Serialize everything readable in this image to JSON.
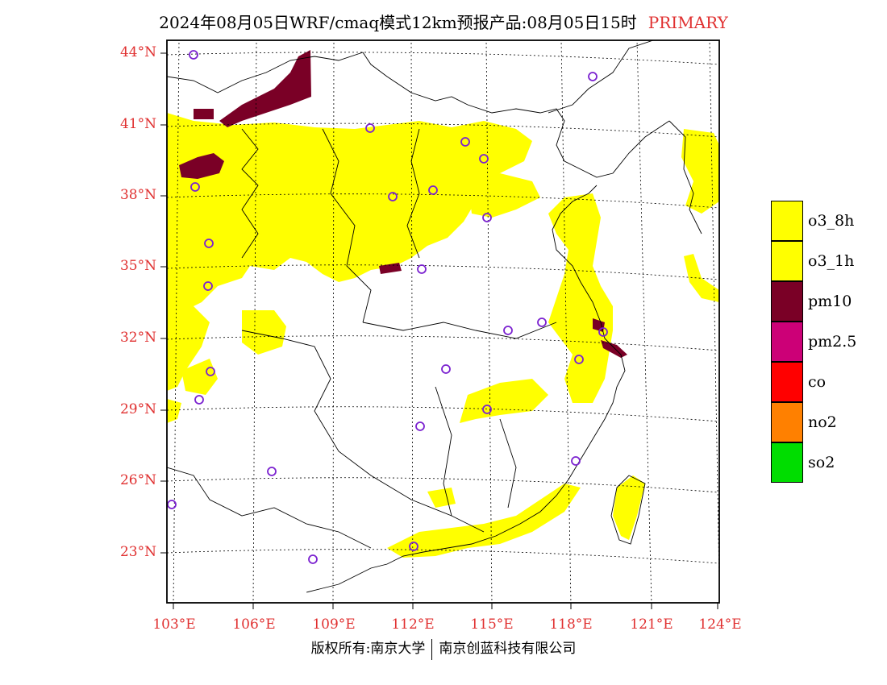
{
  "header": {
    "title": "2024年08月05日WRF/cmaq模式12km预报产品:08月05日15时",
    "tag": "PRIMARY"
  },
  "axes": {
    "lat_labels": [
      "44°N",
      "41°N",
      "38°N",
      "35°N",
      "32°N",
      "29°N",
      "26°N",
      "23°N"
    ],
    "lon_labels": [
      "103°E",
      "106°E",
      "109°E",
      "112°E",
      "115°E",
      "118°E",
      "121°E",
      "124°E"
    ]
  },
  "legend": {
    "items": [
      {
        "label": "o3_8h",
        "color": "#ffff00"
      },
      {
        "label": "o3_1h",
        "color": "#ffff00"
      },
      {
        "label": "pm10",
        "color": "#7a0026"
      },
      {
        "label": "pm2.5",
        "color": "#cc0077"
      },
      {
        "label": "co",
        "color": "#ff0000"
      },
      {
        "label": "no2",
        "color": "#ff8000"
      },
      {
        "label": "so2",
        "color": "#00dd00"
      }
    ]
  },
  "footer": {
    "left": "版权所有:南京大学",
    "right": "南京创蓝科技有限公司"
  },
  "colors": {
    "label_red": "#e03030",
    "primary_pollutant_yellow": "#ffff00",
    "pm10_maroon": "#7a0026",
    "station_marker": "#7b22d0"
  }
}
